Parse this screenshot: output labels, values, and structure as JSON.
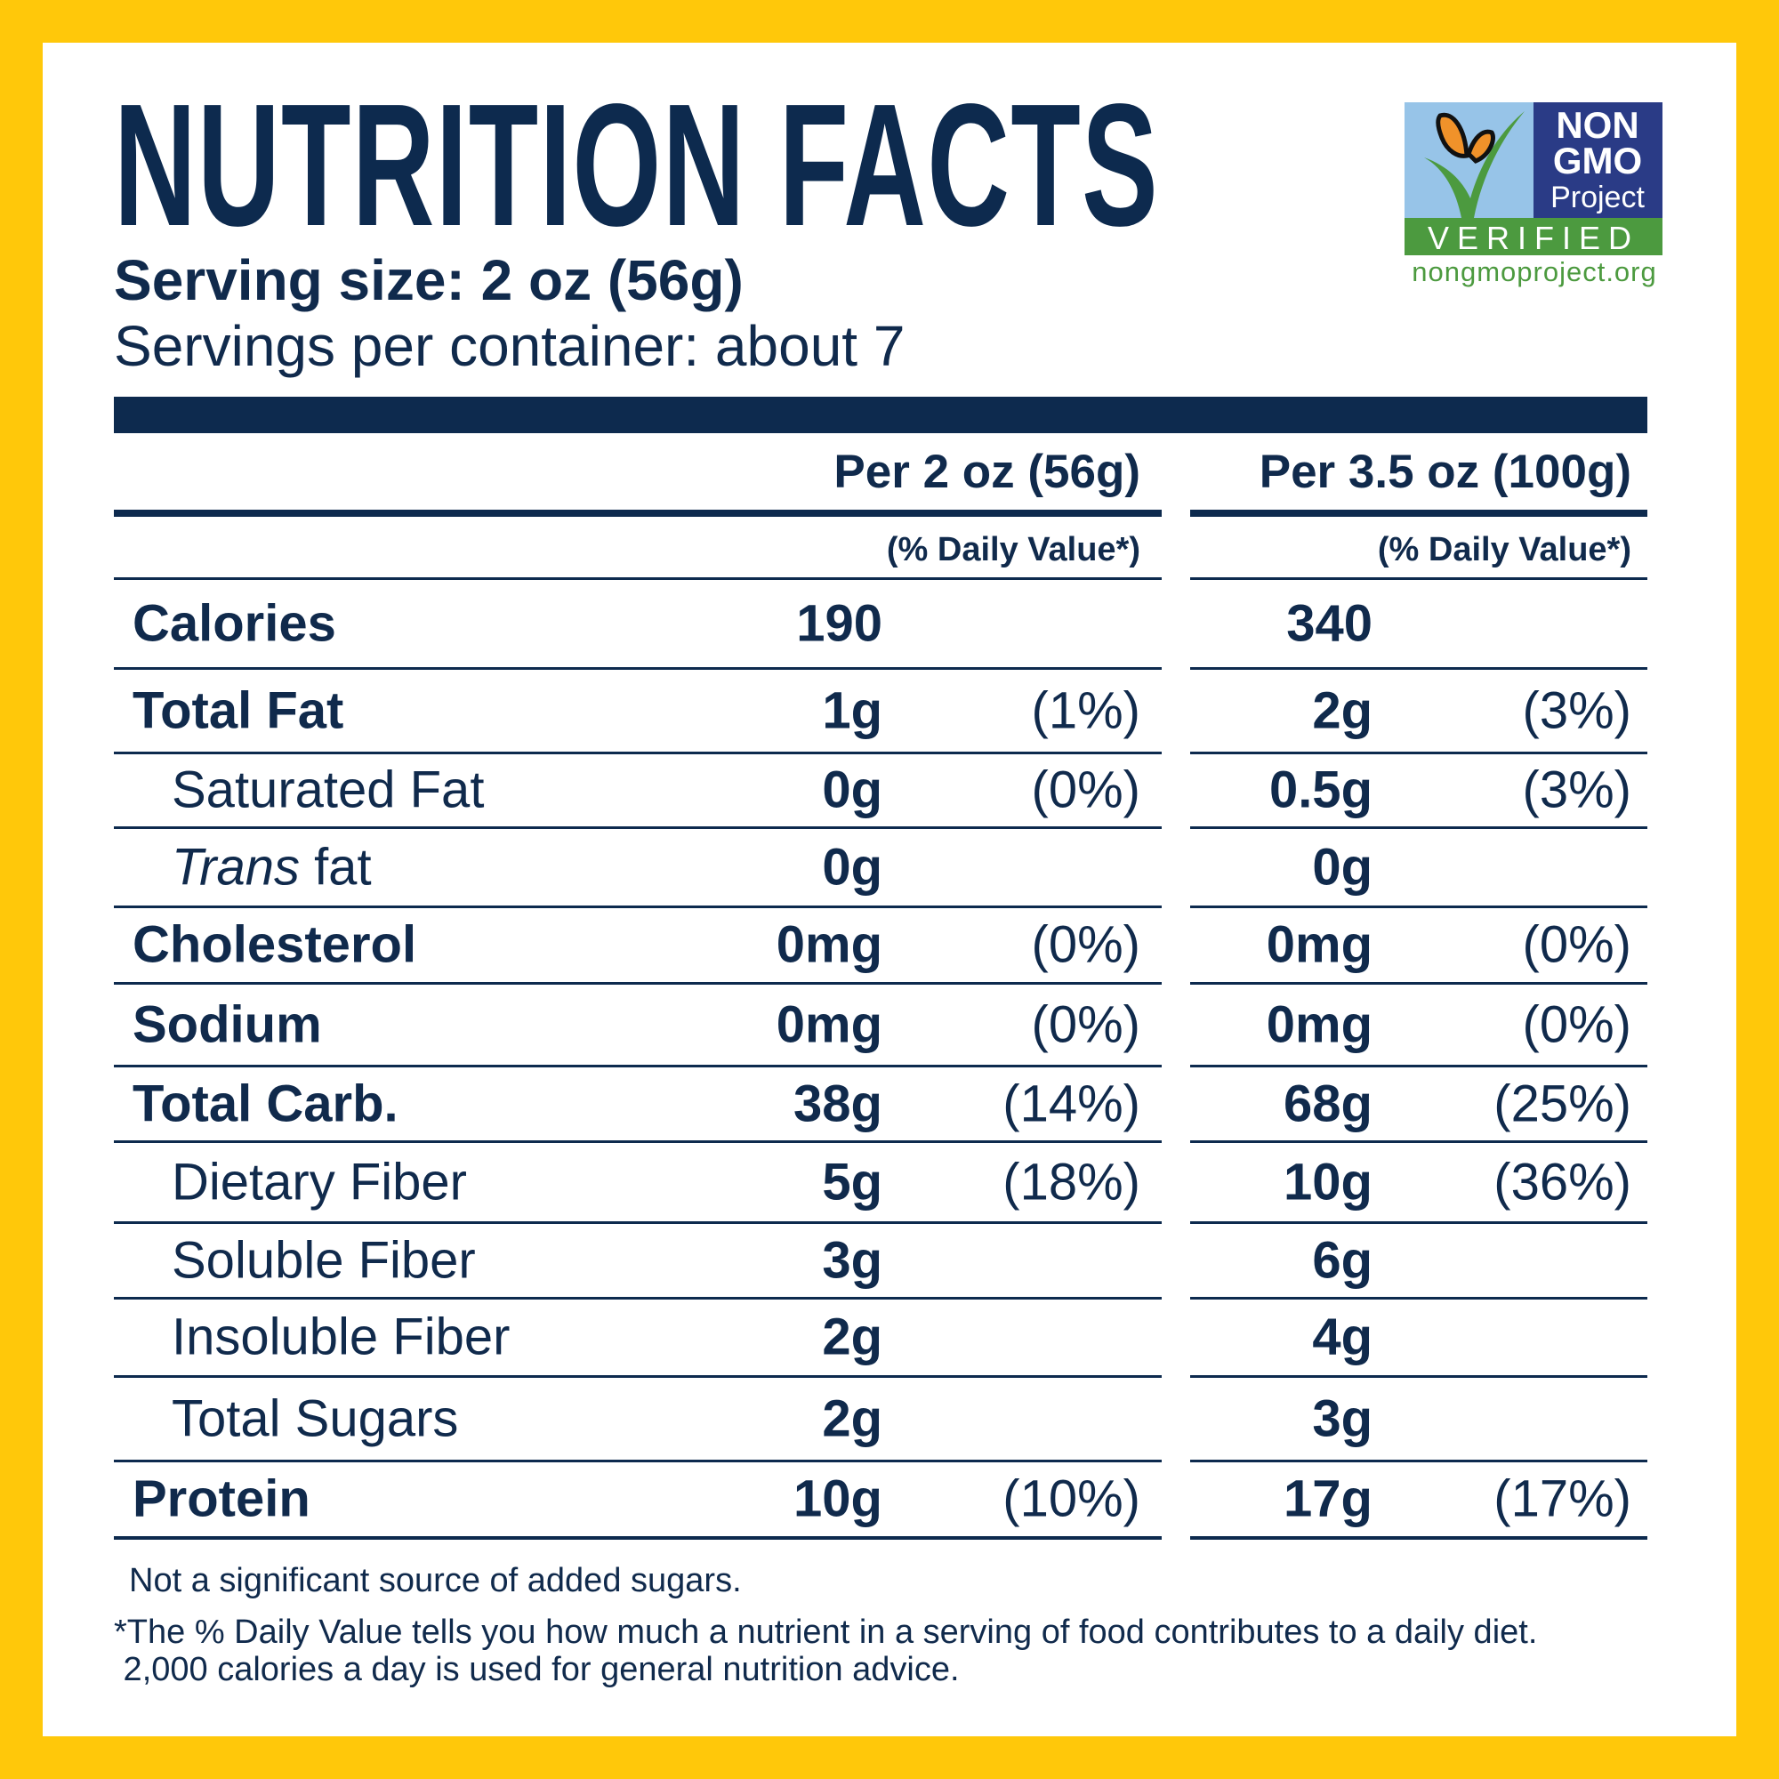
{
  "title": "NUTRITION FACTS",
  "serving_size": "Serving size: 2 oz (56g)",
  "servings_per_container": "Servings per container: about 7",
  "columns": [
    {
      "header": "Per 2 oz (56g)",
      "dv_label": "(% Daily Value*)"
    },
    {
      "header": "Per 3.5 oz (100g)",
      "dv_label": "(% Daily Value*)"
    }
  ],
  "rows": [
    {
      "label": "Calories",
      "bold": true,
      "a1": "190",
      "d1": "",
      "a2": "340",
      "d2": ""
    },
    {
      "label": "Total Fat",
      "bold": true,
      "a1": "1g",
      "d1": "(1%)",
      "a2": "2g",
      "d2": "(3%)"
    },
    {
      "label": "Saturated Fat",
      "bold": false,
      "a1": "0g",
      "d1": "(0%)",
      "a2": "0.5g",
      "d2": "(3%)"
    },
    {
      "label_italic": "Trans",
      "label": " fat",
      "bold": false,
      "a1": "0g",
      "d1": "",
      "a2": "0g",
      "d2": ""
    },
    {
      "label": "Cholesterol",
      "bold": true,
      "a1": "0mg",
      "d1": "(0%)",
      "a2": "0mg",
      "d2": "(0%)"
    },
    {
      "label": "Sodium",
      "bold": true,
      "a1": "0mg",
      "d1": "(0%)",
      "a2": "0mg",
      "d2": "(0%)"
    },
    {
      "label": "Total Carb.",
      "bold": true,
      "a1": "38g",
      "d1": "(14%)",
      "a2": "68g",
      "d2": "(25%)"
    },
    {
      "label": "Dietary Fiber",
      "bold": false,
      "a1": "5g",
      "d1": "(18%)",
      "a2": "10g",
      "d2": "(36%)"
    },
    {
      "label": "Soluble Fiber",
      "bold": false,
      "a1": "3g",
      "d1": "",
      "a2": "6g",
      "d2": ""
    },
    {
      "label": "Insoluble Fiber",
      "bold": false,
      "a1": "2g",
      "d1": "",
      "a2": "4g",
      "d2": ""
    },
    {
      "label": "Total Sugars",
      "bold": false,
      "a1": "2g",
      "d1": "",
      "a2": "3g",
      "d2": ""
    },
    {
      "label": "Protein",
      "bold": true,
      "a1": "10g",
      "d1": "(10%)",
      "a2": "17g",
      "d2": "(17%)"
    }
  ],
  "added_sugars_note": "Not a significant source of added sugars.",
  "footnote_line1": "*The % Daily Value tells you how much a nutrient in a serving of food contributes to a daily diet.",
  "footnote_line2": " 2,000 calories a day is used for general nutrition advice.",
  "logo": {
    "line1": "NON",
    "line2": "GMO",
    "line3": "Project",
    "verified": "VERIFIED",
    "url": "nongmoproject.org",
    "icon": "butterfly-on-checkmark-icon"
  },
  "colors": {
    "border": "#FFC80A",
    "navy": "#0d2a4e",
    "logo_blue": "#2a3b86",
    "logo_sky": "#97c4e8",
    "logo_green": "#4c9a3f",
    "butterfly": "#f0922a"
  }
}
